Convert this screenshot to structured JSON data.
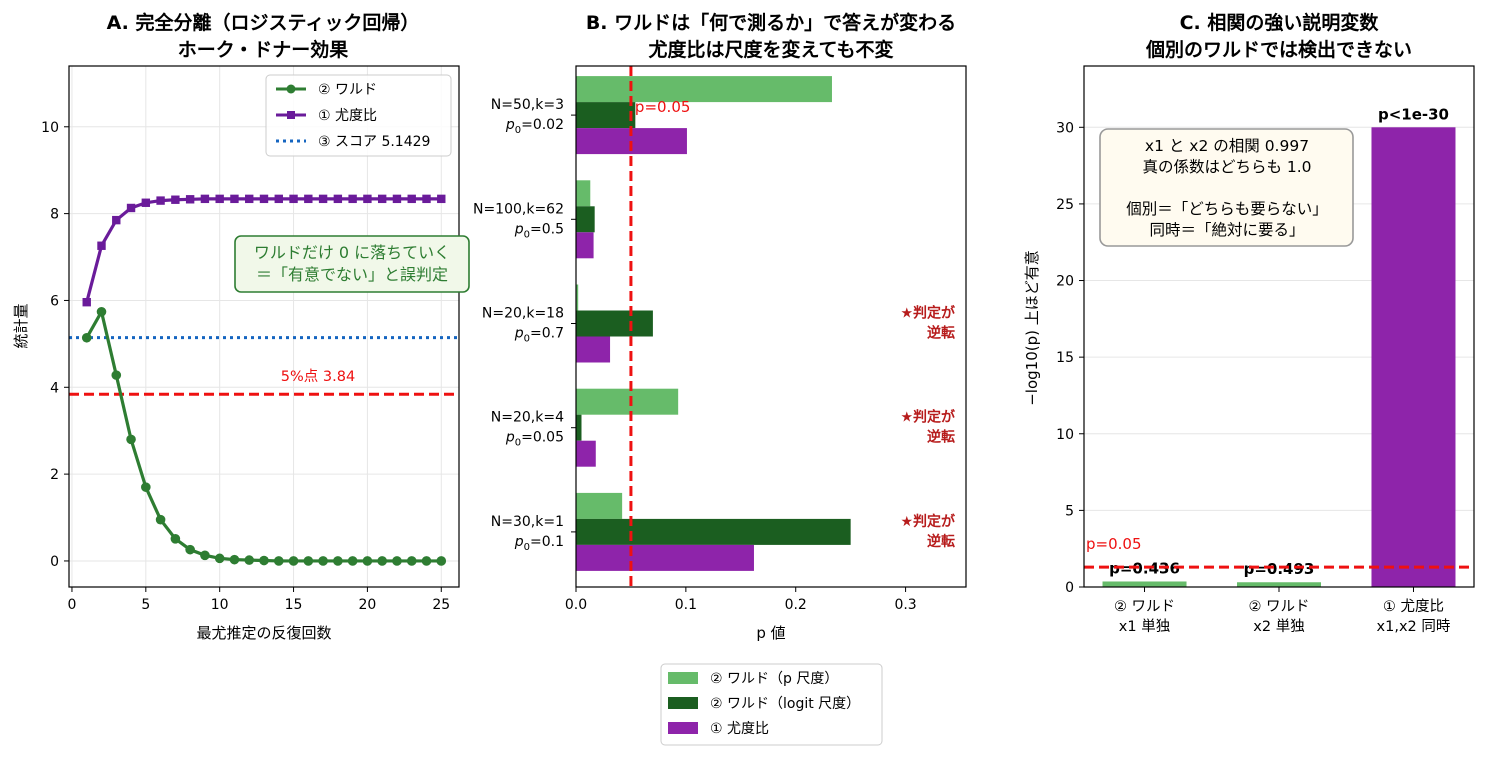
{
  "chart_data": [
    {
      "type": "line",
      "title": "A. 完全分離（ロジスティック回帰）\nホーク・ドナー効果",
      "xlabel": "最尤推定の反復回数",
      "ylabel": "統計量",
      "xlim": [
        -0.2,
        26.2
      ],
      "ylim": [
        -0.6,
        11.4
      ],
      "xticks": [
        0,
        5,
        10,
        15,
        20,
        25
      ],
      "yticks": [
        0,
        2,
        4,
        6,
        8,
        10
      ],
      "grid": true,
      "legend_position": "top-right",
      "series": [
        {
          "name": "② ワルド",
          "color": "#2e7d32",
          "marker": "circle",
          "x": [
            1,
            2,
            3,
            4,
            5,
            6,
            7,
            8,
            9,
            10,
            11,
            12,
            13,
            14,
            15,
            16,
            17,
            18,
            19,
            20,
            21,
            22,
            23,
            24,
            25
          ],
          "y": [
            5.14,
            5.74,
            4.28,
            2.8,
            1.7,
            0.95,
            0.51,
            0.26,
            0.13,
            0.06,
            0.03,
            0.02,
            0.01,
            0,
            0,
            0,
            0,
            0,
            0,
            0,
            0,
            0,
            0,
            0,
            0
          ]
        },
        {
          "name": "① 尤度比",
          "color": "#6a1b9a",
          "marker": "square",
          "x": [
            1,
            2,
            3,
            4,
            5,
            6,
            7,
            8,
            9,
            10,
            11,
            12,
            13,
            14,
            15,
            16,
            17,
            18,
            19,
            20,
            21,
            22,
            23,
            24,
            25
          ],
          "y": [
            5.96,
            7.26,
            7.85,
            8.13,
            8.25,
            8.3,
            8.32,
            8.33,
            8.34,
            8.34,
            8.34,
            8.34,
            8.34,
            8.34,
            8.34,
            8.34,
            8.34,
            8.34,
            8.34,
            8.34,
            8.34,
            8.34,
            8.34,
            8.34,
            8.34
          ]
        }
      ],
      "hlines": [
        {
          "name": "③ スコア 5.1429",
          "y": 5.1429,
          "color": "#1565c0",
          "style": "dotted",
          "in_legend": true
        },
        {
          "label": "5%点 3.84",
          "y": 3.84,
          "color": "#ee1111",
          "style": "dashed",
          "in_legend": false
        }
      ],
      "annotation": "ワルドだけ 0 に落ちていく\n＝「有意でない」と誤判定"
    },
    {
      "type": "bar",
      "orientation": "horizontal",
      "title": "B. ワルドは「何で測るか」で答えが変わる\n尤度比は尺度を変えても不変",
      "xlabel": "p 値",
      "xlim": [
        0,
        0.355
      ],
      "xticks": [
        0.0,
        0.1,
        0.2,
        0.3
      ],
      "categories": [
        {
          "line1": "N=50,k=3",
          "p0": "0.02"
        },
        {
          "line1": "N=100,k=62",
          "p0": "0.5"
        },
        {
          "line1": "N=20,k=18",
          "p0": "0.7"
        },
        {
          "line1": "N=20,k=4",
          "p0": "0.05"
        },
        {
          "line1": "N=30,k=1",
          "p0": "0.1"
        }
      ],
      "series": [
        {
          "name": "② ワルド（p 尺度）",
          "color": "#66bb6a",
          "values": [
            0.233,
            0.013,
            0.002,
            0.093,
            0.042
          ]
        },
        {
          "name": "② ワルド（logit 尺度）",
          "color": "#1b5e20",
          "values": [
            0.054,
            0.017,
            0.07,
            0.005,
            0.25
          ]
        },
        {
          "name": "① 尤度比",
          "color": "#8e24aa",
          "values": [
            0.101,
            0.016,
            0.031,
            0.018,
            0.162
          ]
        }
      ],
      "vline": {
        "x": 0.05,
        "label": "p=0.05",
        "color": "#ee1111",
        "style": "dashed"
      },
      "flags": [
        "",
        "",
        "★判定が\n逆転",
        "★判定が\n逆転",
        "★判定が\n逆転"
      ],
      "legend_position": "bottom-center"
    },
    {
      "type": "bar",
      "title": "C. 相関の強い説明変数\n個別のワルドでは検出できない",
      "ylabel": "−log10(p)  上ほど有意",
      "ylim": [
        0,
        34
      ],
      "yticks": [
        0,
        5,
        10,
        15,
        20,
        25,
        30
      ],
      "categories": [
        "② ワルド\nx1 単独",
        "② ワルド\nx2 単独",
        "① 尤度比\nx1,x2 同時"
      ],
      "values": [
        0.36,
        0.31,
        30
      ],
      "colors": [
        "#66bb6a",
        "#66bb6a",
        "#8e24aa"
      ],
      "bar_labels": [
        "p=0.436",
        "p=0.493",
        "p<1e-30"
      ],
      "hline": {
        "y": 1.301,
        "label": "p=0.05",
        "color": "#ee1111",
        "style": "dashed"
      },
      "annotation": "x1 と x2 の相関 0.997\n真の係数はどちらも 1.0\n\n個別＝「どちらも要らない」\n同時＝「絶対に要る」"
    }
  ]
}
